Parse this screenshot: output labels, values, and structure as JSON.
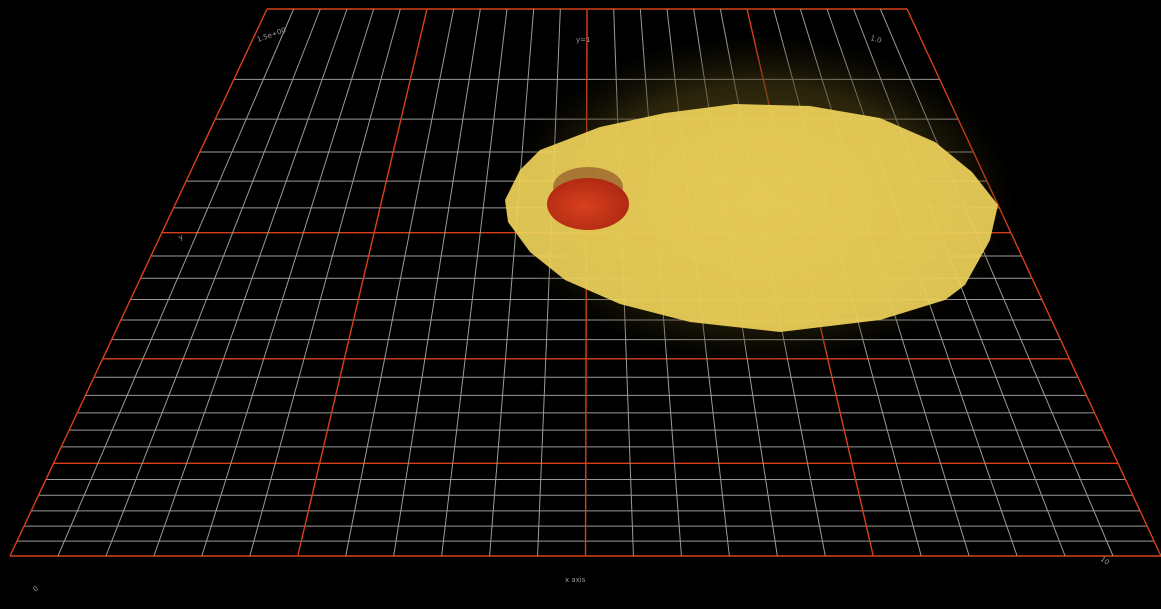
{
  "scene": {
    "background": "#000000",
    "grid": {
      "minor_color": "#9a9a9a",
      "major_color": "#d8401a",
      "divisions": 24
    },
    "objects": [
      {
        "name": "large-yellow-disc",
        "color": "#efd35a",
        "glow": "#6e5e1e"
      },
      {
        "name": "small-red-sphere",
        "color": "#c8301a",
        "rim": "#a06a30"
      }
    ],
    "labels": {
      "top_left": "1.5e+00",
      "top_center": "y=1",
      "top_right": "1.0",
      "left_mid": "y",
      "bottom_left": "0",
      "bottom_center": "x axis",
      "bottom_right": "10"
    }
  }
}
